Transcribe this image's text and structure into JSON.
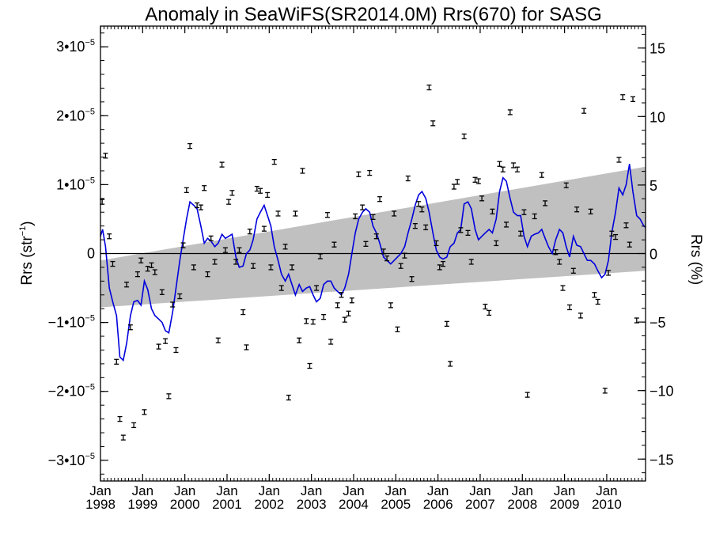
{
  "chart_data": {
    "type": "scatter",
    "title": "Anomaly in SeaWiFS(SR2014.0M) Rrs(670) for SASG",
    "ylabel_left_base": "Rrs (str",
    "ylabel_left_exp": "−1",
    "ylabel_left_close": ")",
    "ylabel_right": "Rrs (%)",
    "xlim": [
      1998.0,
      2010.92
    ],
    "ylim": [
      -3.3e-05,
      3.3e-05
    ],
    "y2lim": [
      -16.6,
      16.6
    ],
    "zero_line": 0,
    "x_ticks": [
      {
        "x": 1998,
        "month": "Jan",
        "year": "1998"
      },
      {
        "x": 1999,
        "month": "Jan",
        "year": "1999"
      },
      {
        "x": 2000,
        "month": "Jan",
        "year": "2000"
      },
      {
        "x": 2001,
        "month": "Jan",
        "year": "2001"
      },
      {
        "x": 2002,
        "month": "Jan",
        "year": "2002"
      },
      {
        "x": 2003,
        "month": "Jan",
        "year": "2003"
      },
      {
        "x": 2004,
        "month": "Jan",
        "year": "2004"
      },
      {
        "x": 2005,
        "month": "Jan",
        "year": "2005"
      },
      {
        "x": 2006,
        "month": "Jan",
        "year": "2006"
      },
      {
        "x": 2007,
        "month": "Jan",
        "year": "2007"
      },
      {
        "x": 2008,
        "month": "Jan",
        "year": "2008"
      },
      {
        "x": 2009,
        "month": "Jan",
        "year": "2009"
      },
      {
        "x": 2010,
        "month": "Jan",
        "year": "2010"
      }
    ],
    "y_ticks_left": [
      {
        "v": 3e-05,
        "mant": "3•10",
        "exp": "−5"
      },
      {
        "v": 2e-05,
        "mant": "2•10",
        "exp": "−5"
      },
      {
        "v": 1e-05,
        "mant": "1•10",
        "exp": "−5"
      },
      {
        "v": 0,
        "mant": "0",
        "exp": ""
      },
      {
        "v": -1e-05,
        "mant": "−1•10",
        "exp": "−5"
      },
      {
        "v": -2e-05,
        "mant": "−2•10",
        "exp": "−5"
      },
      {
        "v": -3e-05,
        "mant": "−3•10",
        "exp": "−5"
      }
    ],
    "y_ticks_right": [
      {
        "v": 15,
        "label": "15"
      },
      {
        "v": 10,
        "label": "10"
      },
      {
        "v": 5,
        "label": "5"
      },
      {
        "v": 0,
        "label": "0"
      },
      {
        "v": -5,
        "label": "−5"
      },
      {
        "v": -10,
        "label": "−10"
      },
      {
        "v": -15,
        "label": "−15"
      }
    ],
    "band": {
      "x": [
        1998.0,
        2010.92
      ],
      "upper": [
        -1e-06,
        1.26e-05
      ],
      "lower": [
        -7.8e-06,
        -2.5e-06
      ],
      "color": "#c0c0c0"
    },
    "points": [
      [
        1998.04,
        7.5e-06
      ],
      [
        1998.12,
        1.42e-05
      ],
      [
        1998.21,
        2.5e-06
      ],
      [
        1998.29,
        -1.5e-06
      ],
      [
        1998.38,
        -1.57e-05
      ],
      [
        1998.46,
        -2.4e-05
      ],
      [
        1998.54,
        -2.67e-05
      ],
      [
        1998.62,
        -4.5e-06
      ],
      [
        1998.71,
        -1.07e-05
      ],
      [
        1998.79,
        -2.49e-05
      ],
      [
        1998.88,
        -3e-06
      ],
      [
        1998.96,
        -1e-06
      ],
      [
        1999.04,
        -2.3e-05
      ],
      [
        1999.12,
        -2.2e-06
      ],
      [
        1999.21,
        -1.7e-06
      ],
      [
        1999.29,
        -2.7e-06
      ],
      [
        1999.38,
        -1.35e-05
      ],
      [
        1999.46,
        -5.6e-06
      ],
      [
        1999.54,
        -1.27e-05
      ],
      [
        1999.62,
        -2.07e-05
      ],
      [
        1999.71,
        -7.4e-06
      ],
      [
        1999.79,
        -1.4e-05
      ],
      [
        1999.88,
        -6.2e-06
      ],
      [
        1999.96,
        1.2e-06
      ],
      [
        2000.04,
        9.2e-06
      ],
      [
        2000.12,
        1.56e-05
      ],
      [
        2000.21,
        -2e-06
      ],
      [
        2000.29,
        7e-06
      ],
      [
        2000.38,
        6.7e-06
      ],
      [
        2000.46,
        9.5e-06
      ],
      [
        2000.54,
        -3e-06
      ],
      [
        2000.62,
        2.2e-06
      ],
      [
        2000.71,
        -1.2e-06
      ],
      [
        2000.79,
        -1.26e-05
      ],
      [
        2000.88,
        1.29e-05
      ],
      [
        2000.96,
        5e-07
      ],
      [
        2001.04,
        7.5e-06
      ],
      [
        2001.12,
        8.8e-06
      ],
      [
        2001.21,
        -1.2e-06
      ],
      [
        2001.29,
        5e-07
      ],
      [
        2001.38,
        -8.5e-06
      ],
      [
        2001.46,
        -1.36e-05
      ],
      [
        2001.54,
        3.2e-06
      ],
      [
        2001.62,
        -1.8e-06
      ],
      [
        2001.71,
        9.4e-06
      ],
      [
        2001.79,
        9.1e-06
      ],
      [
        2001.88,
        3.6e-06
      ],
      [
        2001.96,
        8.5e-06
      ],
      [
        2002.04,
        -2e-06
      ],
      [
        2002.12,
        1.33e-05
      ],
      [
        2002.21,
        5.8e-06
      ],
      [
        2002.29,
        -5e-06
      ],
      [
        2002.38,
        1e-06
      ],
      [
        2002.46,
        -2.09e-05
      ],
      [
        2002.54,
        -2e-06
      ],
      [
        2002.62,
        5.8e-06
      ],
      [
        2002.71,
        -1.26e-05
      ],
      [
        2002.79,
        1.2e-05
      ],
      [
        2002.88,
        -9.8e-06
      ],
      [
        2002.96,
        -1.63e-05
      ],
      [
        2003.04,
        -9.9e-06
      ],
      [
        2003.12,
        -5e-06
      ],
      [
        2003.21,
        -4e-07
      ],
      [
        2003.29,
        -9.2e-06
      ],
      [
        2003.38,
        5.6e-06
      ],
      [
        2003.46,
        -1.28e-05
      ],
      [
        2003.54,
        1.3e-06
      ],
      [
        2003.62,
        -7.5e-06
      ],
      [
        2003.71,
        -6e-06
      ],
      [
        2003.79,
        -9.6e-06
      ],
      [
        2003.88,
        -8.7e-06
      ],
      [
        2003.96,
        -6.8e-06
      ],
      [
        2004.04,
        5.4e-06
      ],
      [
        2004.12,
        1.15e-05
      ],
      [
        2004.21,
        6.7e-06
      ],
      [
        2004.29,
        1.4e-06
      ],
      [
        2004.38,
        1.17e-05
      ],
      [
        2004.46,
        5.3e-06
      ],
      [
        2004.54,
        2.5e-06
      ],
      [
        2004.62,
        7.9e-06
      ],
      [
        2004.71,
        3e-07
      ],
      [
        2004.79,
        -7e-07
      ],
      [
        2004.88,
        -7.5e-06
      ],
      [
        2004.96,
        5.8e-06
      ],
      [
        2005.04,
        -1.1e-05
      ],
      [
        2005.12,
        -1.8e-06
      ],
      [
        2005.21,
        -3e-07
      ],
      [
        2005.29,
        1.09e-05
      ],
      [
        2005.38,
        -3.7e-06
      ],
      [
        2005.46,
        4e-06
      ],
      [
        2005.54,
        7.2e-06
      ],
      [
        2005.62,
        6.4e-06
      ],
      [
        2005.71,
        3.8e-06
      ],
      [
        2005.79,
        2.41e-05
      ],
      [
        2005.88,
        1.89e-05
      ],
      [
        2005.96,
        1.5e-06
      ],
      [
        2006.04,
        -2e-06
      ],
      [
        2006.12,
        -1.5e-06
      ],
      [
        2006.21,
        -1.02e-05
      ],
      [
        2006.29,
        -1.6e-05
      ],
      [
        2006.38,
        9.7e-06
      ],
      [
        2006.46,
        1.04e-05
      ],
      [
        2006.54,
        3.4e-06
      ],
      [
        2006.62,
        1.7e-05
      ],
      [
        2006.71,
        3e-06
      ],
      [
        2006.79,
        -1.2e-06
      ],
      [
        2006.88,
        1.07e-05
      ],
      [
        2006.96,
        1.05e-05
      ],
      [
        2007.04,
        8e-06
      ],
      [
        2007.12,
        -7.7e-06
      ],
      [
        2007.21,
        -8.6e-06
      ],
      [
        2007.29,
        6.1e-06
      ],
      [
        2007.38,
        1.5e-06
      ],
      [
        2007.46,
        1.3e-05
      ],
      [
        2007.54,
        1.22e-05
      ],
      [
        2007.62,
        4.2e-06
      ],
      [
        2007.71,
        2.05e-05
      ],
      [
        2007.79,
        1.28e-05
      ],
      [
        2007.88,
        1.22e-05
      ],
      [
        2007.96,
        2.9e-06
      ],
      [
        2008.04,
        6e-06
      ],
      [
        2008.12,
        -2.05e-05
      ],
      [
        2008.29,
        5.4e-06
      ],
      [
        2008.46,
        1.14e-05
      ],
      [
        2008.54,
        7.3e-06
      ],
      [
        2008.79,
        2e-07
      ],
      [
        2008.88,
        -1.2e-06
      ],
      [
        2008.96,
        -5e-06
      ],
      [
        2009.04,
        9.9e-06
      ],
      [
        2009.12,
        -7.8e-06
      ],
      [
        2009.21,
        -2.5e-06
      ],
      [
        2009.29,
        6.4e-06
      ],
      [
        2009.38,
        -9e-06
      ],
      [
        2009.46,
        2.07e-05
      ],
      [
        2009.62,
        6.1e-06
      ],
      [
        2009.71,
        -6e-06
      ],
      [
        2009.79,
        -7e-06
      ],
      [
        2009.96,
        -1.99e-05
      ],
      [
        2010.04,
        -2.8e-06
      ],
      [
        2010.12,
        2.9e-06
      ],
      [
        2010.21,
        2.4e-06
      ],
      [
        2010.29,
        1.36e-05
      ],
      [
        2010.38,
        2.27e-05
      ],
      [
        2010.46,
        4.1e-06
      ],
      [
        2010.54,
        1.3e-06
      ],
      [
        2010.62,
        2.24e-05
      ],
      [
        2010.71,
        -9.7e-06
      ]
    ],
    "smooth": {
      "color": "#0000dd",
      "points": [
        [
          1998.0,
          2.5e-06
        ],
        [
          1998.05,
          3.5e-06
        ],
        [
          1998.12,
          1e-06
        ],
        [
          1998.21,
          -5e-06
        ],
        [
          1998.29,
          -7e-06
        ],
        [
          1998.38,
          -9e-06
        ],
        [
          1998.46,
          -1.5e-05
        ],
        [
          1998.54,
          -1.55e-05
        ],
        [
          1998.62,
          -1.3e-05
        ],
        [
          1998.71,
          -9e-06
        ],
        [
          1998.79,
          -7e-06
        ],
        [
          1998.88,
          -6.8e-06
        ],
        [
          1998.96,
          -7.5e-06
        ],
        [
          1999.04,
          -4e-06
        ],
        [
          1999.12,
          -5.2e-06
        ],
        [
          1999.21,
          -8e-06
        ],
        [
          1999.29,
          -9e-06
        ],
        [
          1999.38,
          -9.5e-06
        ],
        [
          1999.46,
          -1e-05
        ],
        [
          1999.54,
          -1.12e-05
        ],
        [
          1999.62,
          -1.15e-05
        ],
        [
          1999.71,
          -8.5e-06
        ],
        [
          1999.79,
          -5e-06
        ],
        [
          1999.88,
          -1e-06
        ],
        [
          1999.96,
          2e-06
        ],
        [
          2000.04,
          5e-06
        ],
        [
          2000.12,
          7.5e-06
        ],
        [
          2000.21,
          7e-06
        ],
        [
          2000.29,
          6.5e-06
        ],
        [
          2000.38,
          4e-06
        ],
        [
          2000.46,
          1.5e-06
        ],
        [
          2000.54,
          2.2e-06
        ],
        [
          2000.62,
          1.8e-06
        ],
        [
          2000.71,
          1e-06
        ],
        [
          2000.79,
          1.5e-06
        ],
        [
          2000.88,
          2.8e-06
        ],
        [
          2000.96,
          2.2e-06
        ],
        [
          2001.04,
          2.5e-06
        ],
        [
          2001.12,
          2.8e-06
        ],
        [
          2001.21,
          -5e-07
        ],
        [
          2001.29,
          -2e-06
        ],
        [
          2001.38,
          -1.8e-06
        ],
        [
          2001.46,
          0.0
        ],
        [
          2001.54,
          5e-07
        ],
        [
          2001.62,
          2e-06
        ],
        [
          2001.71,
          5e-06
        ],
        [
          2001.79,
          6e-06
        ],
        [
          2001.88,
          7e-06
        ],
        [
          2001.96,
          5.5e-06
        ],
        [
          2002.04,
          4e-06
        ],
        [
          2002.12,
          1e-06
        ],
        [
          2002.21,
          -1e-06
        ],
        [
          2002.29,
          -3e-06
        ],
        [
          2002.38,
          -4e-06
        ],
        [
          2002.46,
          -3e-06
        ],
        [
          2002.54,
          -4.5e-06
        ],
        [
          2002.62,
          -6e-06
        ],
        [
          2002.71,
          -4.5e-06
        ],
        [
          2002.79,
          -5.5e-06
        ],
        [
          2002.88,
          -5e-06
        ],
        [
          2002.96,
          -4.8e-06
        ],
        [
          2003.04,
          -6e-06
        ],
        [
          2003.12,
          -7e-06
        ],
        [
          2003.21,
          -6.5e-06
        ],
        [
          2003.29,
          -4.5e-06
        ],
        [
          2003.38,
          -4e-06
        ],
        [
          2003.46,
          -4e-06
        ],
        [
          2003.54,
          -5e-06
        ],
        [
          2003.62,
          -5.5e-06
        ],
        [
          2003.71,
          -6e-06
        ],
        [
          2003.79,
          -5e-06
        ],
        [
          2003.88,
          -3e-06
        ],
        [
          2003.96,
          0.0
        ],
        [
          2004.04,
          3e-06
        ],
        [
          2004.12,
          5e-06
        ],
        [
          2004.21,
          6e-06
        ],
        [
          2004.29,
          6.5e-06
        ],
        [
          2004.38,
          6e-06
        ],
        [
          2004.46,
          4e-06
        ],
        [
          2004.54,
          3e-06
        ],
        [
          2004.62,
          1.5e-06
        ],
        [
          2004.71,
          -5e-07
        ],
        [
          2004.79,
          -1e-06
        ],
        [
          2004.88,
          -1.5e-06
        ],
        [
          2004.96,
          -1e-06
        ],
        [
          2005.04,
          -5e-07
        ],
        [
          2005.12,
          0.0
        ],
        [
          2005.21,
          1e-06
        ],
        [
          2005.29,
          3e-06
        ],
        [
          2005.38,
          5e-06
        ],
        [
          2005.46,
          7e-06
        ],
        [
          2005.54,
          8.5e-06
        ],
        [
          2005.62,
          9e-06
        ],
        [
          2005.71,
          8e-06
        ],
        [
          2005.79,
          6e-06
        ],
        [
          2005.88,
          3e-06
        ],
        [
          2005.96,
          5e-07
        ],
        [
          2006.04,
          -5e-07
        ],
        [
          2006.12,
          -8e-07
        ],
        [
          2006.21,
          -5e-07
        ],
        [
          2006.29,
          1e-06
        ],
        [
          2006.38,
          1.5e-06
        ],
        [
          2006.46,
          3e-06
        ],
        [
          2006.54,
          3.5e-06
        ],
        [
          2006.62,
          7.2e-06
        ],
        [
          2006.71,
          7.5e-06
        ],
        [
          2006.79,
          6.5e-06
        ],
        [
          2006.88,
          3.5e-06
        ],
        [
          2006.96,
          2e-06
        ],
        [
          2007.04,
          2.5e-06
        ],
        [
          2007.12,
          3e-06
        ],
        [
          2007.21,
          3.5e-06
        ],
        [
          2007.29,
          3e-06
        ],
        [
          2007.38,
          5e-06
        ],
        [
          2007.46,
          9e-06
        ],
        [
          2007.54,
          1.1e-05
        ],
        [
          2007.62,
          1.05e-05
        ],
        [
          2007.71,
          8e-06
        ],
        [
          2007.79,
          6e-06
        ],
        [
          2007.88,
          5.5e-06
        ],
        [
          2007.96,
          5.5e-06
        ],
        [
          2008.04,
          2.5e-06
        ],
        [
          2008.12,
          1e-06
        ],
        [
          2008.21,
          2.5e-06
        ],
        [
          2008.29,
          2.8e-06
        ],
        [
          2008.38,
          3e-06
        ],
        [
          2008.46,
          3.5e-06
        ],
        [
          2008.54,
          2.2e-06
        ],
        [
          2008.62,
          1e-06
        ],
        [
          2008.71,
          0.0
        ],
        [
          2008.79,
          2e-06
        ],
        [
          2008.88,
          3.5e-06
        ],
        [
          2008.96,
          3e-06
        ],
        [
          2009.04,
          1e-06
        ],
        [
          2009.12,
          -5e-07
        ],
        [
          2009.21,
          2.5e-06
        ],
        [
          2009.29,
          1.2e-06
        ],
        [
          2009.38,
          1e-06
        ],
        [
          2009.46,
          0.0
        ],
        [
          2009.54,
          -1e-06
        ],
        [
          2009.62,
          -1e-06
        ],
        [
          2009.71,
          -1.5e-06
        ],
        [
          2009.79,
          -2.5e-06
        ],
        [
          2009.88,
          -3.5e-06
        ],
        [
          2009.96,
          -3e-06
        ],
        [
          2010.04,
          -1e-06
        ],
        [
          2010.12,
          3e-06
        ],
        [
          2010.21,
          6e-06
        ],
        [
          2010.29,
          9.5e-06
        ],
        [
          2010.38,
          8.5e-06
        ],
        [
          2010.46,
          1e-05
        ],
        [
          2010.54,
          1.3e-05
        ],
        [
          2010.62,
          9e-06
        ],
        [
          2010.71,
          5.5e-06
        ],
        [
          2010.79,
          5e-06
        ],
        [
          2010.88,
          4e-06
        ],
        [
          2010.92,
          3.8e-06
        ]
      ]
    },
    "grid": false,
    "legend": "none"
  }
}
